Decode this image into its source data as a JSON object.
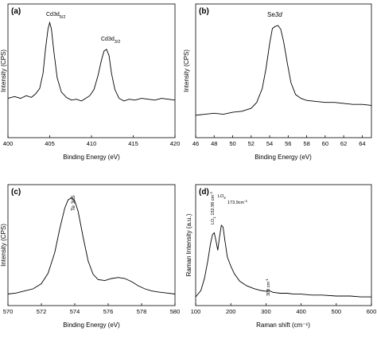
{
  "chart_data": [
    {
      "type": "line",
      "panel_label": "(a)",
      "xlabel": "Binding Energy (eV)",
      "ylabel": "Intensity (CPS)",
      "xlim": [
        400,
        420
      ],
      "ylim": [
        0,
        100
      ],
      "x_ticks": [
        "400",
        "405",
        "410",
        "415",
        "420"
      ],
      "y_ticks_shown": false,
      "grid": false,
      "peaks": [
        {
          "label": "Cd3d",
          "sub": "5/2",
          "x": 405.0
        },
        {
          "label": "Cd3d",
          "sub": "3/2",
          "x": 411.8
        }
      ],
      "series": [
        {
          "x": [
            400,
            400.8,
            401.5,
            402.2,
            402.8,
            403.3,
            403.8,
            404.2,
            404.5,
            404.8,
            405.0,
            405.2,
            405.5,
            405.9,
            406.4,
            407,
            407.6,
            408.2,
            408.8,
            409.3,
            409.8,
            410.3,
            410.8,
            411.2,
            411.5,
            411.8,
            412.1,
            412.4,
            412.8,
            413.3,
            413.9,
            414.5,
            415.2,
            416,
            416.8,
            417.6,
            418.4,
            419.2,
            420
          ],
          "y": [
            12,
            14,
            12,
            15,
            13,
            17,
            23,
            40,
            68,
            90,
            97,
            90,
            64,
            35,
            19,
            13,
            10,
            11,
            9,
            12,
            15,
            22,
            38,
            55,
            65,
            67,
            60,
            40,
            22,
            12,
            9,
            11,
            10,
            12,
            11,
            10,
            12,
            11,
            10
          ]
        }
      ]
    },
    {
      "type": "line",
      "panel_label": "(b)",
      "xlabel": "Binding Energy (eV)",
      "ylabel": "Intensity (CPS)",
      "xlim": [
        46,
        65
      ],
      "ylim": [
        0,
        100
      ],
      "x_ticks": [
        "46",
        "48",
        "50",
        "52",
        "54",
        "56",
        "58",
        "60",
        "62",
        "64"
      ],
      "y_ticks_shown": false,
      "grid": false,
      "peaks": [
        {
          "label": "Se",
          "italic": "3d",
          "x": 54.8
        }
      ],
      "series": [
        {
          "x": [
            46,
            47,
            48,
            49,
            50,
            51,
            52,
            52.6,
            53.2,
            53.6,
            54.0,
            54.3,
            54.6,
            54.9,
            55.2,
            55.5,
            55.9,
            56.3,
            56.8,
            57.4,
            58,
            59,
            60,
            61,
            62,
            63,
            64,
            65
          ],
          "y": [
            5,
            6,
            7,
            6,
            8,
            9,
            12,
            18,
            32,
            52,
            78,
            93,
            95,
            96,
            92,
            80,
            58,
            38,
            26,
            22,
            20,
            19,
            18,
            18,
            17,
            16,
            16,
            15
          ]
        }
      ]
    },
    {
      "type": "line",
      "panel_label": "(c)",
      "xlabel": "Binding Energy (eV)",
      "ylabel": "Intensity (CPS)",
      "xlim": [
        570,
        580
      ],
      "ylim": [
        0,
        100
      ],
      "x_ticks": [
        "570",
        "572",
        "574",
        "576",
        "578",
        "580"
      ],
      "y_ticks_shown": false,
      "grid": false,
      "peaks": [
        {
          "label": "Te 3d5",
          "rotated": true,
          "x": 573.8
        }
      ],
      "series": [
        {
          "x": [
            570,
            570.5,
            571,
            571.5,
            572,
            572.4,
            572.8,
            573.1,
            573.4,
            573.6,
            573.8,
            574.0,
            574.2,
            574.5,
            574.8,
            575.1,
            575.4,
            575.8,
            576.2,
            576.6,
            577.0,
            577.4,
            577.8,
            578.2,
            578.6,
            579,
            579.5,
            580
          ],
          "y": [
            5,
            6,
            8,
            10,
            15,
            25,
            45,
            68,
            88,
            96,
            98,
            95,
            85,
            60,
            37,
            24,
            19,
            18,
            20,
            21,
            20,
            17,
            13,
            10,
            8,
            7,
            6,
            5
          ]
        }
      ]
    },
    {
      "type": "line",
      "panel_label": "(d)",
      "xlabel": "Raman shift (cm⁻¹)",
      "ylabel": "Raman Intensity (a.u.)",
      "xlim": [
        100,
        600
      ],
      "ylim": [
        0,
        100
      ],
      "x_ticks": [
        "100",
        "200",
        "300",
        "400",
        "500",
        "600"
      ],
      "y_ticks_shown": false,
      "grid": false,
      "peaks": [
        {
          "label": "LO",
          "sub": "1",
          "value": "152.98 cm",
          "sup": "-1",
          "x": 152.98
        },
        {
          "label": "LO",
          "sub": "2",
          "value": "173.9cm",
          "sup": "-1",
          "x": 173.9
        },
        {
          "label": "308 cm",
          "sup": "-1",
          "x": 308
        }
      ],
      "series": [
        {
          "x": [
            100,
            115,
            125,
            135,
            142,
            148,
            153,
            158,
            163,
            168,
            173,
            178,
            183,
            190,
            200,
            210,
            225,
            245,
            265,
            285,
            300,
            308,
            320,
            340,
            360,
            380,
            400,
            430,
            460,
            500,
            540,
            570,
            600
          ],
          "y": [
            5,
            12,
            25,
            45,
            62,
            72,
            74,
            65,
            55,
            70,
            82,
            80,
            66,
            48,
            38,
            30,
            22,
            17,
            14,
            12,
            11,
            12,
            10,
            9,
            9,
            8,
            8,
            7,
            7,
            6,
            6,
            5,
            5
          ]
        }
      ]
    }
  ]
}
